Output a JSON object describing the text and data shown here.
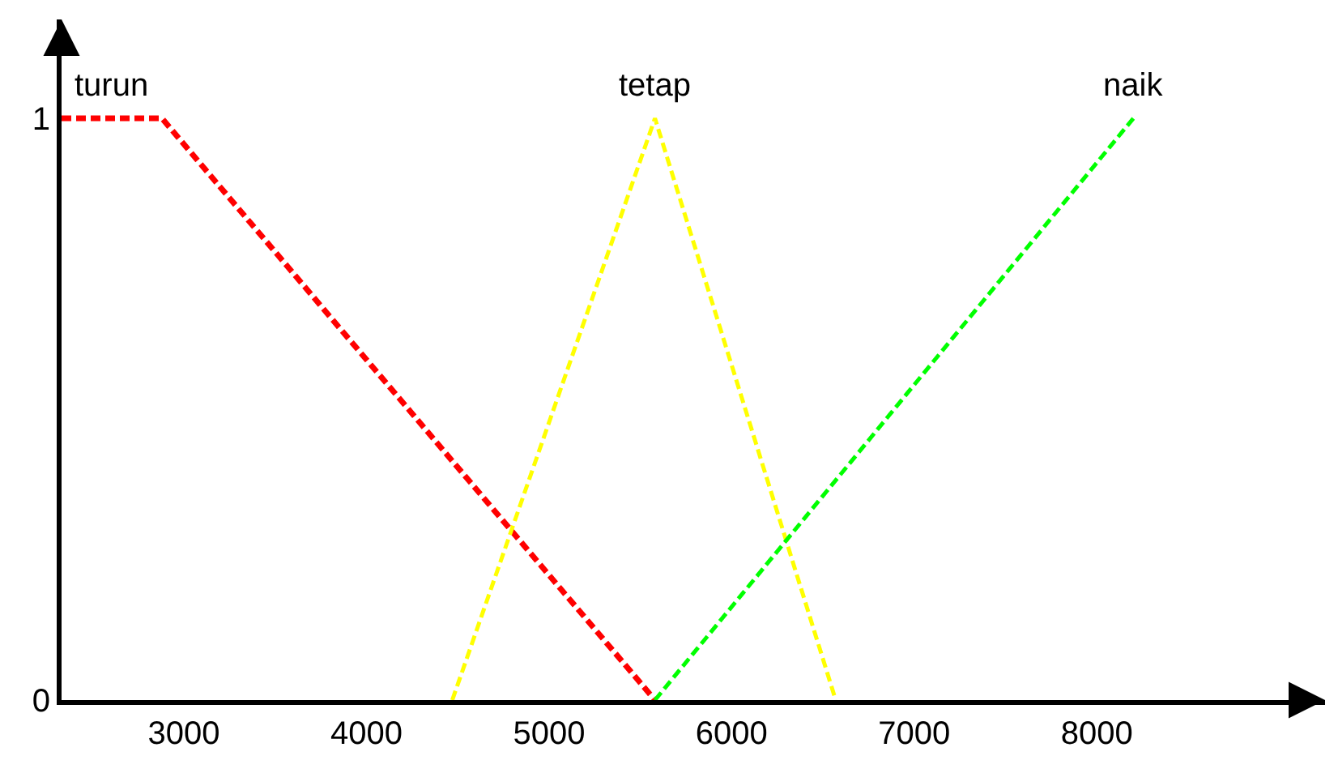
{
  "chart_data": {
    "type": "line",
    "xlim": [
      2330,
      9250
    ],
    "ylim": [
      0,
      1.17
    ],
    "xticks": [
      3000,
      4000,
      5000,
      6000,
      7000,
      8000
    ],
    "yticks": [
      0,
      1
    ],
    "legend": false,
    "marker": "none",
    "line_style": "dashed",
    "series": [
      {
        "name": "turun",
        "color": "#ff0000",
        "x": [
          2330,
          2880,
          5580
        ],
        "values": [
          1,
          1,
          0
        ]
      },
      {
        "name": "tetap",
        "color": "#ffff00",
        "x": [
          4470,
          5580,
          6570
        ],
        "values": [
          0,
          1,
          0
        ]
      },
      {
        "name": "naik",
        "color": "#00ff00",
        "x": [
          5580,
          8200
        ],
        "values": [
          0,
          1
        ]
      }
    ]
  }
}
